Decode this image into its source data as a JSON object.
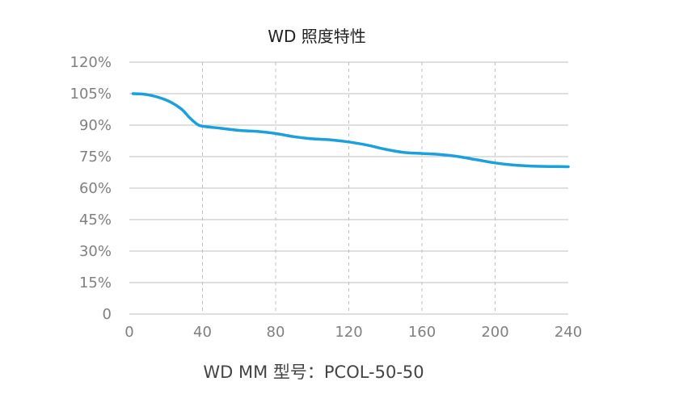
{
  "colors": {
    "series": "#1aa0dc",
    "grid": "#bfbfbf",
    "axis": "#bfbfbf",
    "tick": "#808080",
    "title": "#222222",
    "footer": "#444444"
  },
  "footer": "WD MM 型号：PCOL-50-50",
  "chart_data": {
    "type": "line",
    "title": "WD 照度特性",
    "xlabel": "",
    "ylabel": "",
    "x_ticks": [
      "0",
      "40",
      "80",
      "120",
      "160",
      "200",
      "240"
    ],
    "y_ticks": [
      "0",
      "15%",
      "30%",
      "45%",
      "60%",
      "75%",
      "90%",
      "105%",
      "120%"
    ],
    "xlim": [
      0,
      240
    ],
    "ylim": [
      0,
      120
    ],
    "grid": {
      "horizontal": "solid",
      "vertical": "dashed"
    },
    "series": [
      {
        "x": [
          2,
          10,
          20,
          28,
          33,
          37,
          40,
          50,
          60,
          70,
          80,
          90,
          100,
          110,
          120,
          130,
          140,
          150,
          160,
          170,
          180,
          190,
          200,
          210,
          220,
          230,
          240
        ],
        "y": [
          105,
          104.5,
          102,
          98,
          93.5,
          90.5,
          89.5,
          88.5,
          87.5,
          87,
          86,
          84.5,
          83.5,
          83,
          82,
          80.5,
          78.5,
          77,
          76.5,
          76,
          75,
          73.5,
          72,
          71,
          70.5,
          70.3,
          70.2
        ]
      }
    ]
  }
}
